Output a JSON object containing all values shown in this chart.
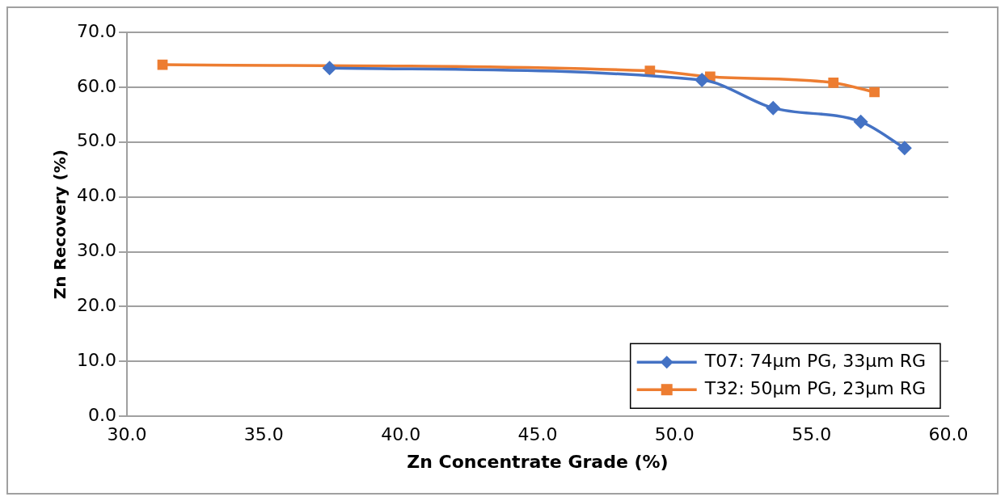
{
  "chart_data": {
    "type": "line",
    "xlabel": "Zn Concentrate Grade (%)",
    "ylabel": "Zn Recovery (%)",
    "xlim": [
      30,
      60
    ],
    "xticks": [
      {
        "value": 30,
        "label": "30.0"
      },
      {
        "value": 35,
        "label": "35.0"
      },
      {
        "value": 40,
        "label": "40.0"
      },
      {
        "value": 45,
        "label": "45.0"
      },
      {
        "value": 50,
        "label": "50.0"
      },
      {
        "value": 55,
        "label": "55.0"
      },
      {
        "value": 60,
        "label": "60.0"
      }
    ],
    "ylim": [
      0,
      70
    ],
    "yticks": [
      {
        "value": 0,
        "label": "0.0"
      },
      {
        "value": 10,
        "label": "10.0"
      },
      {
        "value": 20,
        "label": "20.0"
      },
      {
        "value": 30,
        "label": "30.0"
      },
      {
        "value": 40,
        "label": "40.0"
      },
      {
        "value": 50,
        "label": "50.0"
      },
      {
        "value": 60,
        "label": "60.0"
      },
      {
        "value": 70,
        "label": "70.0"
      }
    ],
    "grid": "y",
    "legend": "bottom right",
    "series": [
      {
        "name": "T07: 74µm PG, 33µm RG",
        "color": "#4472c4",
        "marker": "diamond",
        "x": [
          37.4,
          51.0,
          53.6,
          56.8,
          58.4
        ],
        "values": [
          63.5,
          61.3,
          56.2,
          53.7,
          48.9
        ]
      },
      {
        "name": "T32: 50µm PG, 23µm RG",
        "color": "#ed7d31",
        "marker": "square",
        "x": [
          31.3,
          49.1,
          51.3,
          55.8,
          57.3
        ],
        "values": [
          64.1,
          63.0,
          61.9,
          60.8,
          59.1
        ]
      }
    ]
  }
}
